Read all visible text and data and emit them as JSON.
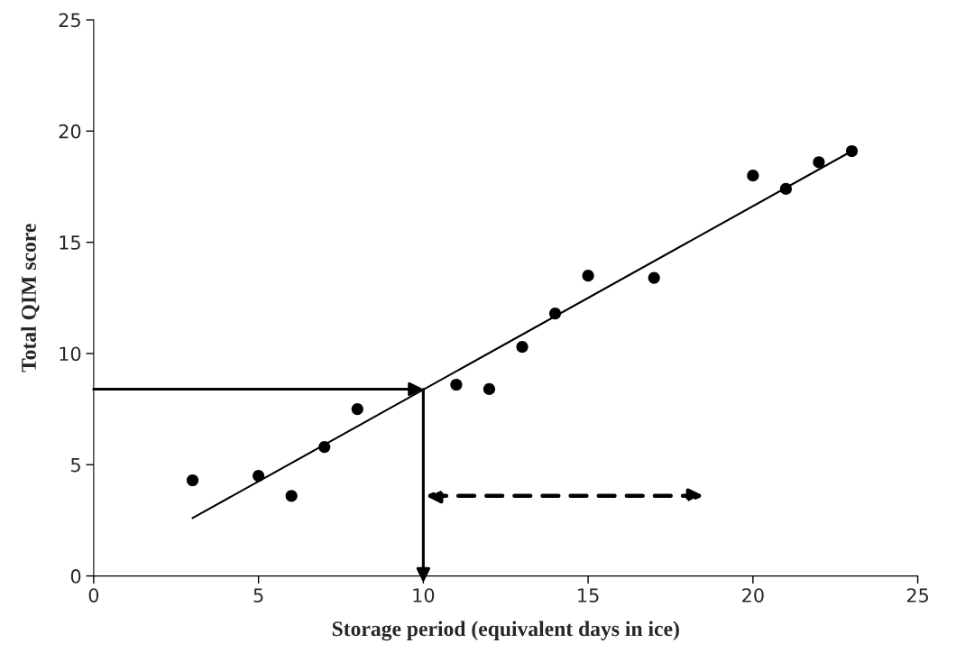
{
  "chart_data": {
    "type": "scatter",
    "xlabel": "Storage period (equivalent days in ice)",
    "ylabel": "Total QIM score",
    "xlim": [
      0,
      25
    ],
    "ylim": [
      0,
      25
    ],
    "xticks": [
      0,
      5,
      10,
      15,
      20,
      25
    ],
    "yticks": [
      0,
      5,
      10,
      15,
      20,
      25
    ],
    "grid": false,
    "legend": false,
    "series": [
      {
        "marker": "circle",
        "color": "#000000",
        "x": [
          3,
          5,
          6,
          7,
          8,
          11,
          12,
          13,
          14,
          15,
          17,
          20,
          21,
          22,
          23
        ],
        "values": [
          4.3,
          4.5,
          3.6,
          5.8,
          7.5,
          8.6,
          8.4,
          10.3,
          11.8,
          13.5,
          13.4,
          18.0,
          17.4,
          18.6,
          19.1
        ]
      },
      {
        "type": "line",
        "marker": "none",
        "line_style": "solid",
        "color": "#000000",
        "x": [
          3,
          23
        ],
        "values": [
          2.6,
          19.1
        ]
      }
    ]
  }
}
